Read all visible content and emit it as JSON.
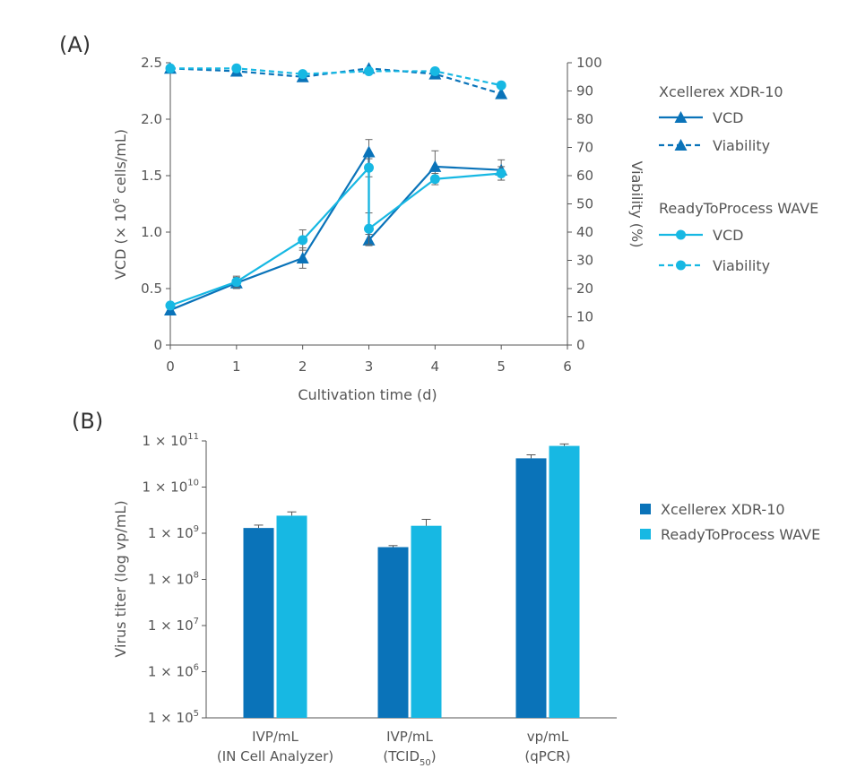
{
  "colors": {
    "xdr": "#0a73b9",
    "wave": "#17b8e3",
    "axis": "#555555"
  },
  "chart_data": [
    {
      "panel": "(A)",
      "type": "line",
      "xlabel": "Cultivation time (d)",
      "ylabel": "VCD (× 10⁶ cells/mL)",
      "ylabel_parts": {
        "pre": "VCD (× 10",
        "sup": "6",
        "post": " cells/mL)"
      },
      "y2label": "Viability (%)",
      "xlim": [
        0,
        6
      ],
      "ylim": [
        0,
        2.5
      ],
      "y2lim": [
        0,
        100
      ],
      "x_ticks": [
        "0",
        "1",
        "2",
        "3",
        "4",
        "5",
        "6"
      ],
      "y_ticks": [
        "0",
        "0.5",
        "1.0",
        "1.5",
        "2.0",
        "2.5"
      ],
      "y2_ticks": [
        "0",
        "10",
        "20",
        "30",
        "40",
        "50",
        "60",
        "70",
        "80",
        "90",
        "100"
      ],
      "legend": {
        "group1_title": "Xcellerex XDR-10",
        "group2_title": "ReadyToProcess WAVE",
        "vcd_label": "VCD",
        "viability_label": "Viability"
      },
      "series": [
        {
          "name": "VCD",
          "group": "Xcellerex XDR-10",
          "axis": "left",
          "marker": "triangle",
          "dash": false,
          "x": [
            0,
            1,
            2,
            3,
            3,
            4,
            5
          ],
          "y": [
            0.31,
            0.55,
            0.77,
            1.71,
            0.93,
            1.58,
            1.55
          ],
          "err": [
            0,
            0.05,
            0.09,
            0.11,
            0.05,
            0.14,
            0.09
          ]
        },
        {
          "name": "VCD",
          "group": "ReadyToProcess WAVE",
          "axis": "left",
          "marker": "circle",
          "dash": false,
          "x": [
            0,
            1,
            2,
            3,
            3,
            4,
            5
          ],
          "y": [
            0.35,
            0.56,
            0.93,
            1.57,
            1.03,
            1.47,
            1.52
          ],
          "err": [
            0,
            0.05,
            0.09,
            0.08,
            0.14,
            0.05,
            0.06
          ]
        },
        {
          "name": "Viability",
          "group": "Xcellerex XDR-10",
          "axis": "right",
          "marker": "triangle",
          "dash": true,
          "x": [
            0,
            1,
            2,
            3,
            4,
            5
          ],
          "y": [
            98,
            97,
            95,
            98,
            96,
            89
          ],
          "err": [
            0,
            0,
            1.5,
            0,
            0,
            0
          ]
        },
        {
          "name": "Viability",
          "group": "ReadyToProcess WAVE",
          "axis": "right",
          "marker": "circle",
          "dash": true,
          "x": [
            0,
            1,
            2,
            3,
            4,
            5
          ],
          "y": [
            98,
            98,
            96,
            97,
            97,
            92
          ],
          "err": [
            0,
            0,
            0,
            0,
            0,
            0
          ]
        }
      ]
    },
    {
      "panel": "(B)",
      "type": "bar",
      "ylabel": "Virus titer (log vp/mL)",
      "yscale": "log",
      "ylim_log10": [
        5,
        11
      ],
      "y_ticks": [
        {
          "base": "1 × 10",
          "exp": "5"
        },
        {
          "base": "1 × 10",
          "exp": "6"
        },
        {
          "base": "1 × 10",
          "exp": "7"
        },
        {
          "base": "1 × 10",
          "exp": "8"
        },
        {
          "base": "1 × 10",
          "exp": "9"
        },
        {
          "base": "1 × 10",
          "exp": "10"
        },
        {
          "base": "1 × 10",
          "exp": "11"
        }
      ],
      "categories": [
        {
          "line1": "IVP/mL",
          "line2": "(IN Cell Analyzer)",
          "line2_sub": "",
          "line2_post": ""
        },
        {
          "line1": "IVP/mL",
          "line2": "(TCID",
          "line2_sub": "50",
          "line2_post": ")"
        },
        {
          "line1": "vp/mL",
          "line2": "(qPCR)",
          "line2_sub": "",
          "line2_post": ""
        }
      ],
      "series": [
        {
          "name": "Xcellerex XDR-10",
          "values": [
            1300000000.0,
            500000000.0,
            42000000000.0
          ],
          "err_upper": [
            1500000000.0,
            540000000.0,
            50000000000.0
          ]
        },
        {
          "name": "ReadyToProcess WAVE",
          "values": [
            2400000000.0,
            1450000000.0,
            78000000000.0
          ],
          "err_upper": [
            2900000000.0,
            2000000000.0,
            86000000000.0
          ]
        }
      ]
    }
  ]
}
